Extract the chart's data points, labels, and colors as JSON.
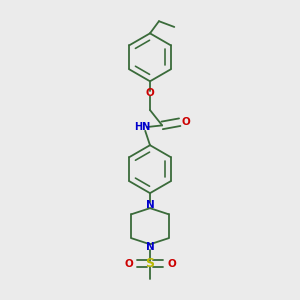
{
  "bg_color": "#ebebeb",
  "bond_color": "#3a6b3a",
  "N_color": "#0000cc",
  "O_color": "#cc0000",
  "S_color": "#b8b800",
  "line_width": 1.3,
  "dbo": 0.012,
  "figsize": [
    3.0,
    3.0
  ],
  "dpi": 100,
  "xlim": [
    0.22,
    0.78
  ],
  "ylim": [
    0.04,
    0.97
  ]
}
